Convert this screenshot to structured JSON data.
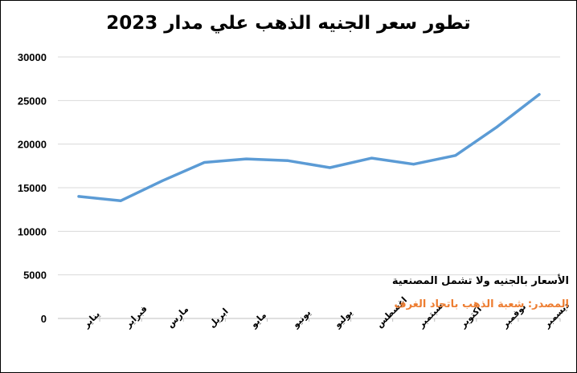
{
  "chart_data": {
    "type": "line",
    "title": "تطور سعر الجنيه الذهب علي مدار 2023",
    "categories": [
      "يناير",
      "فبراير",
      "مارس",
      "ابريل",
      "مايو",
      "يونيو",
      "يوليو",
      "اغسطس",
      "سبتمبر",
      "أكتوبر",
      "نوفمبر",
      "ديسمبر"
    ],
    "series": [
      {
        "values": [
          14000,
          13500,
          15800,
          17900,
          18300,
          18100,
          17300,
          18400,
          17700,
          18700,
          22000,
          25700
        ]
      }
    ],
    "yticks": [
      "0",
      "5000",
      "10000",
      "15000",
      "20000",
      "25000",
      "30000"
    ],
    "ylim": [
      0,
      30000
    ],
    "grid": true,
    "line_color": "#5b9bd5",
    "grid_color": "#d9d9d9"
  },
  "notes": {
    "unit_note": "الأسعار بالجنيه ولا تشمل المصنعية",
    "source_note": "المصدر: شعبة الذهب باتحاد الغرف",
    "source_color": "#ed7d31"
  }
}
